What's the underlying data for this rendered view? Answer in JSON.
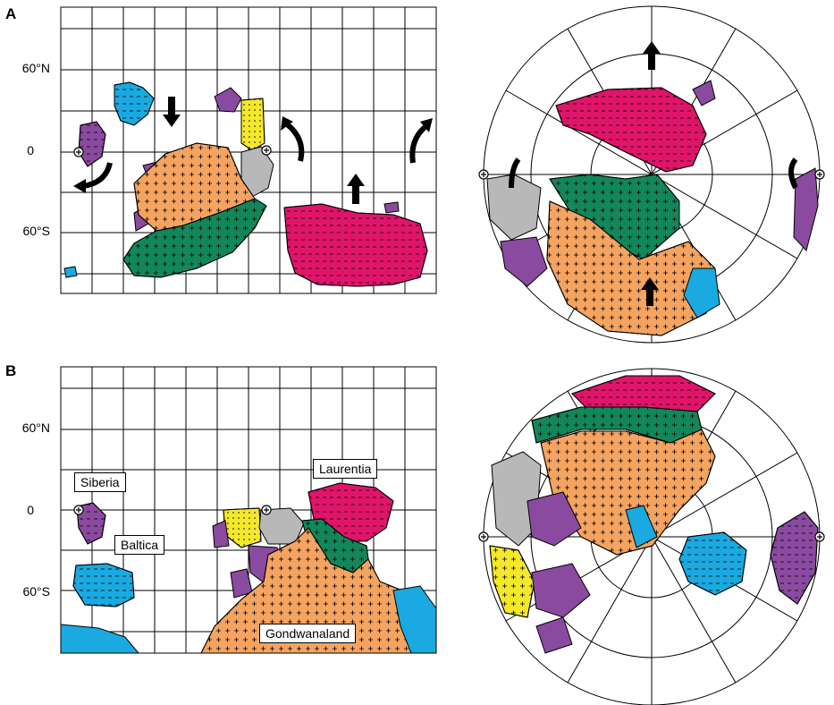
{
  "panel_a": {
    "letter": "A",
    "lat_labels": [
      "60°N",
      "0",
      "60°S"
    ]
  },
  "panel_b": {
    "letter": "B",
    "lat_labels": [
      "60°N",
      "0",
      "60°S"
    ],
    "continent_labels": {
      "siberia": "Siberia",
      "baltica": "Baltica",
      "laurentia": "Laurentia",
      "gondwanaland": "Gondwanaland"
    }
  },
  "colors": {
    "gondwana_orange": "#f4a460",
    "green": "#12875a",
    "laurentia_magenta": "#e0156a",
    "baltica_blue": "#1aa9e0",
    "siberia_purple": "#8a4a9f",
    "yellow": "#f5e82a",
    "grey": "#b8b8b8"
  }
}
